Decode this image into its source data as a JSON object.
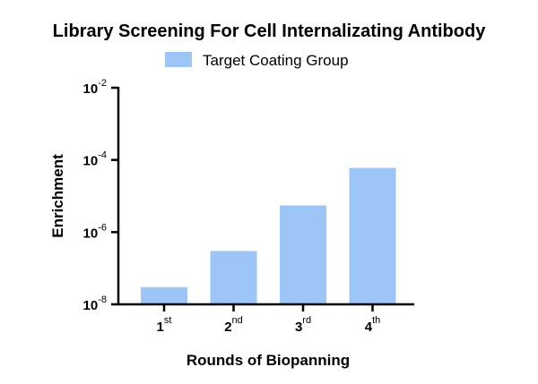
{
  "chart_data": {
    "type": "bar",
    "title": "Library Screening For Cell Internalizating Antibody",
    "xlabel": "Rounds of Biopanning",
    "ylabel": "Enrichment",
    "yscale": "log",
    "ylim": [
      1e-08,
      0.01
    ],
    "yticks": [
      {
        "value": 1e-08,
        "base": "10",
        "exp": "-8"
      },
      {
        "value": 1e-06,
        "base": "10",
        "exp": "-6"
      },
      {
        "value": 0.0001,
        "base": "10",
        "exp": "-4"
      },
      {
        "value": 0.01,
        "base": "10",
        "exp": "-2"
      }
    ],
    "categories": [
      {
        "num": "1",
        "sup": "st"
      },
      {
        "num": "2",
        "sup": "nd"
      },
      {
        "num": "3",
        "sup": "rd"
      },
      {
        "num": "4",
        "sup": "th"
      }
    ],
    "series": [
      {
        "name": "Target Coating Group",
        "color": "#9ec5f8",
        "values": [
          3e-08,
          3e-07,
          5.5e-06,
          6e-05
        ]
      }
    ],
    "legend": "top-center",
    "grid": false
  }
}
